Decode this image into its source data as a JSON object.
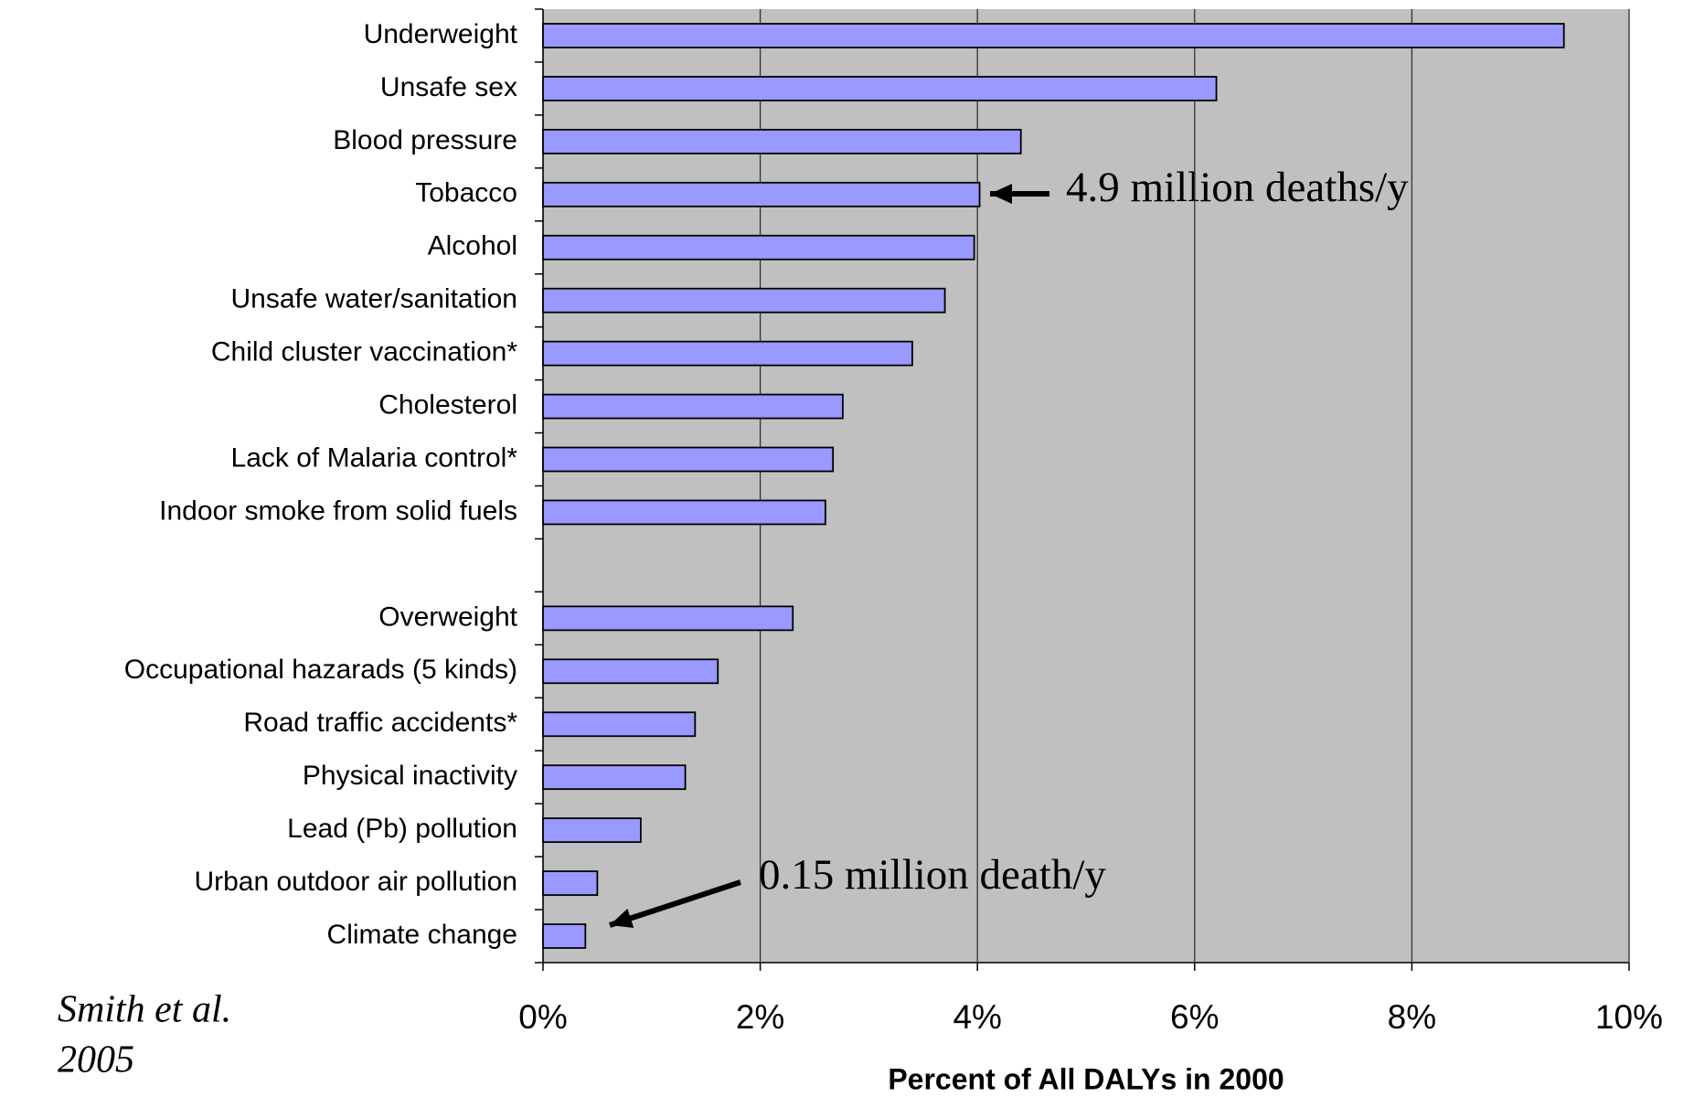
{
  "chart_data": {
    "type": "hbar",
    "categories": [
      "Underweight",
      "Unsafe sex",
      "Blood pressure",
      "Tobacco",
      "Alcohol",
      "Unsafe water/sanitation",
      "Child cluster vaccination*",
      "Cholesterol",
      "Lack of Malaria control*",
      "Indoor smoke from solid fuels",
      null,
      "Overweight",
      "Occupational hazarads (5 kinds)",
      "Road traffic accidents*",
      "Physical inactivity",
      "Lead (Pb) pollution",
      "Urban outdoor air pollution",
      "Climate change"
    ],
    "values": [
      9.4,
      6.2,
      4.4,
      4.02,
      3.97,
      3.7,
      3.4,
      2.76,
      2.67,
      2.6,
      null,
      2.3,
      1.61,
      1.4,
      1.31,
      0.9,
      0.5,
      0.39
    ],
    "color": "#9999ff",
    "xlim": [
      0,
      10
    ],
    "xticks": [
      {
        "value": 0,
        "label": "0%"
      },
      {
        "value": 2,
        "label": "2%"
      },
      {
        "value": 4,
        "label": "4%"
      },
      {
        "value": 6,
        "label": "6%"
      },
      {
        "value": 8,
        "label": "8%"
      },
      {
        "value": 10,
        "label": "10%"
      }
    ],
    "xlabel": "Percent of All DALYs in 2000",
    "grid": true,
    "annotations": [
      "4.9 million deaths/y",
      "0.15 million death/y"
    ],
    "source": [
      "Smith et al.",
      "2005"
    ]
  }
}
